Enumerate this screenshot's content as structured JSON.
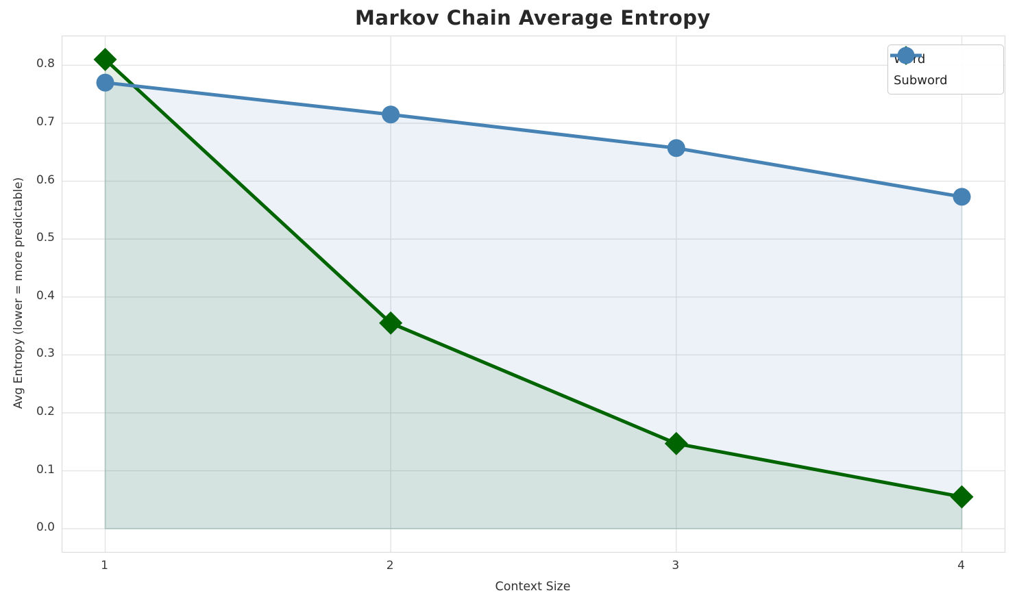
{
  "header": {
    "title": "Markov Chain Average Entropy"
  },
  "chart_data": {
    "type": "line",
    "title": "Markov Chain Average Entropy",
    "xlabel": "Context Size",
    "ylabel": "Avg Entropy (lower = more predictable)",
    "x": [
      1,
      2,
      3,
      4
    ],
    "series": [
      {
        "name": "Word",
        "values": [
          0.81,
          0.355,
          0.147,
          0.055
        ],
        "color": "#006400",
        "marker": "diamond"
      },
      {
        "name": "Subword",
        "values": [
          0.77,
          0.715,
          0.657,
          0.573
        ],
        "color": "#4682b4",
        "marker": "circle"
      }
    ],
    "fill_to_zero": true,
    "fill_alpha": 0.1,
    "xlim": [
      0.85,
      4.15
    ],
    "ylim": [
      -0.04,
      0.85
    ],
    "xticks": [
      "1",
      "2",
      "3",
      "4"
    ],
    "yticks": [
      "0.0",
      "0.1",
      "0.2",
      "0.3",
      "0.4",
      "0.5",
      "0.6",
      "0.7",
      "0.8"
    ],
    "grid": true,
    "grid_color": "#e4e4e4",
    "legend_position": "upper right",
    "axis_text_color": "#383838",
    "title_color": "#282828"
  }
}
